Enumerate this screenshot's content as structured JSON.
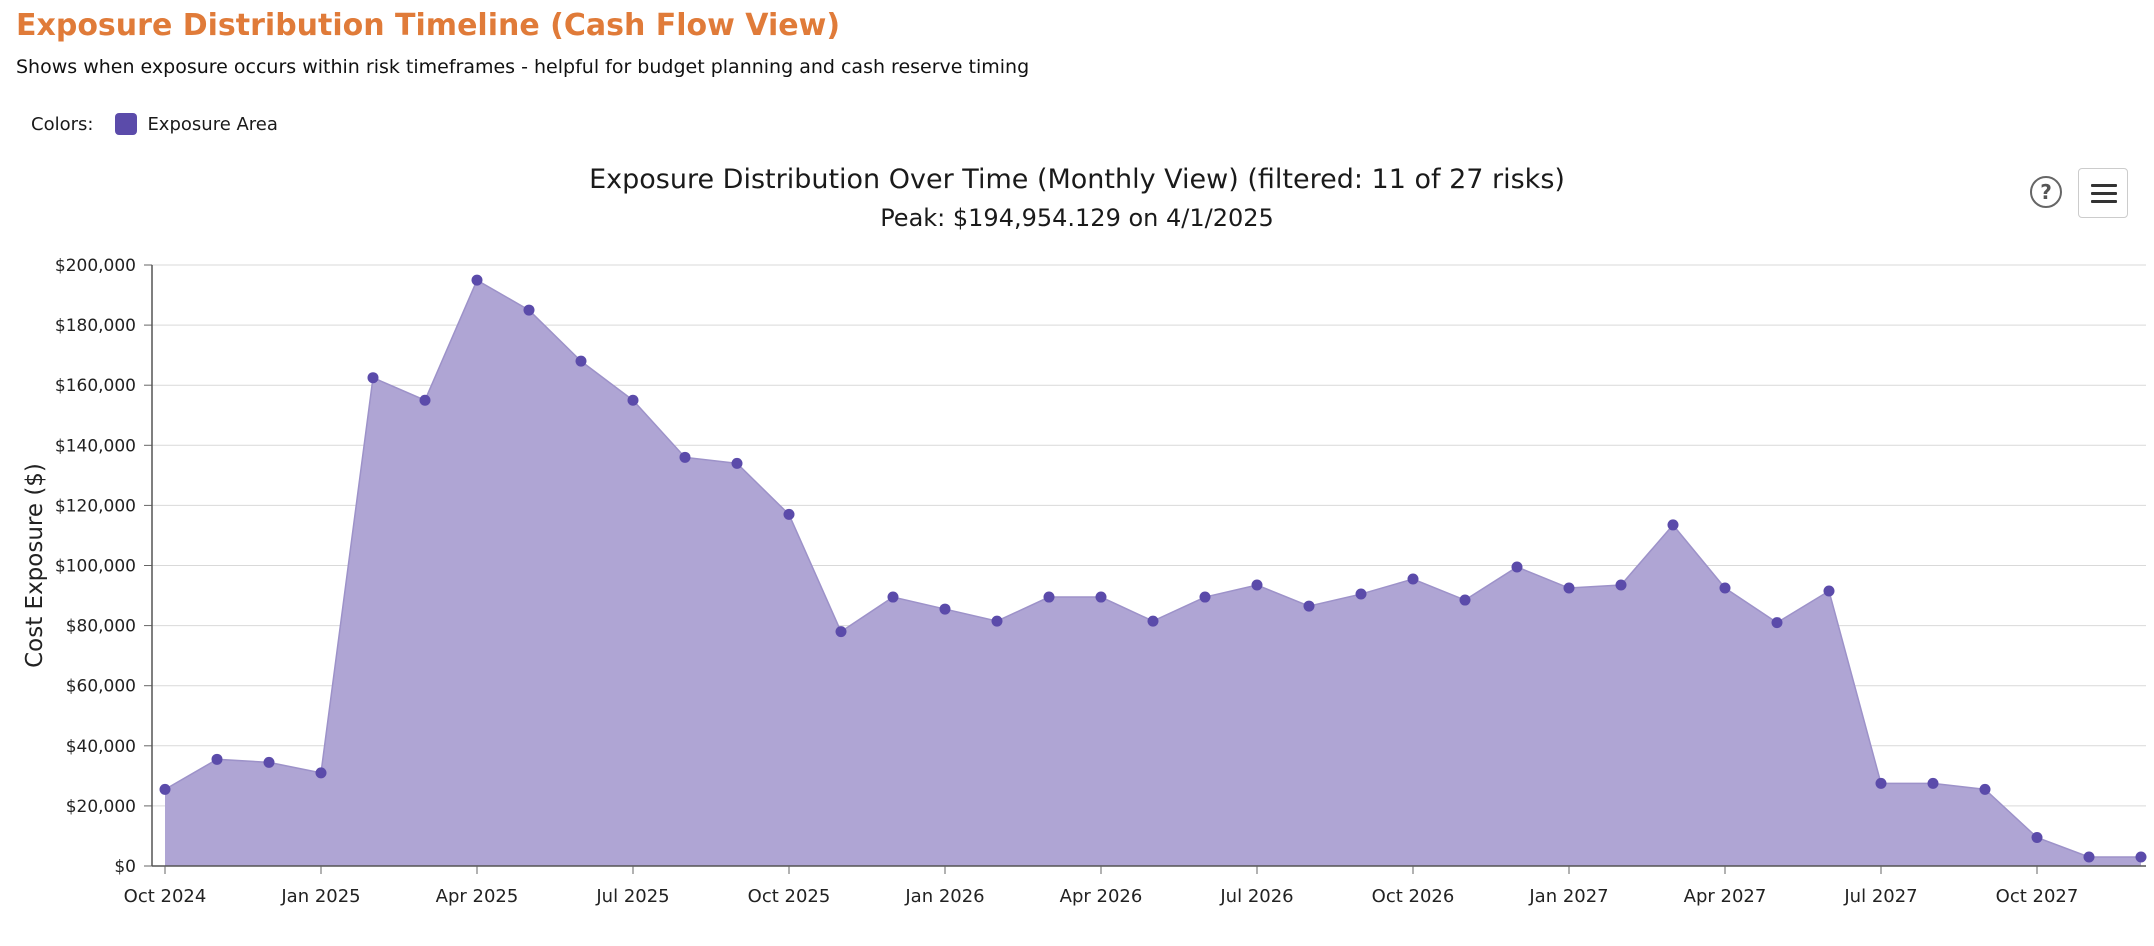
{
  "page": {
    "title": "Exposure Distribution Timeline (Cash Flow View)",
    "subtitle": "Shows when exposure occurs within risk timeframes - helpful for budget planning and cash reserve timing",
    "legend_prefix": "Colors:",
    "legend_item": "Exposure Area",
    "legend_color": "#5B4BAA"
  },
  "toolbar": {
    "help_label": "?",
    "help_icon": "help-icon",
    "menu_icon": "hamburger-menu-icon"
  },
  "chart_data": {
    "type": "area",
    "title": "Exposure Distribution Over Time (Monthly View) (filtered: 11 of 27 risks)",
    "subtitle": "Peak: $194,954.129 on 4/1/2025",
    "xlabel": "",
    "ylabel": "Cost Exposure ($)",
    "ylim": [
      0,
      200000
    ],
    "yticks": [
      0,
      20000,
      40000,
      60000,
      80000,
      100000,
      120000,
      140000,
      160000,
      180000,
      200000
    ],
    "ytick_labels": [
      "$0",
      "$20,000",
      "$40,000",
      "$60,000",
      "$80,000",
      "$100,000",
      "$120,000",
      "$140,000",
      "$160,000",
      "$180,000",
      "$200,000"
    ],
    "xtick_labels": [
      "Oct 2024",
      "Jan 2025",
      "Apr 2025",
      "Jul 2025",
      "Oct 2025",
      "Jan 2026",
      "Apr 2026",
      "Jul 2026",
      "Oct 2026",
      "Jan 2027",
      "Apr 2027",
      "Jul 2027",
      "Oct 2027"
    ],
    "x": [
      "2024-10-01",
      "2024-11-01",
      "2024-12-01",
      "2025-01-01",
      "2025-02-01",
      "2025-03-01",
      "2025-04-01",
      "2025-05-01",
      "2025-06-01",
      "2025-07-01",
      "2025-08-01",
      "2025-09-01",
      "2025-10-01",
      "2025-11-01",
      "2025-12-01",
      "2026-01-01",
      "2026-02-01",
      "2026-03-01",
      "2026-04-01",
      "2026-05-01",
      "2026-06-01",
      "2026-07-01",
      "2026-08-01",
      "2026-09-01",
      "2026-10-01",
      "2026-11-01",
      "2026-12-01",
      "2027-01-01",
      "2027-02-01",
      "2027-03-01",
      "2027-04-01",
      "2027-05-01",
      "2027-06-01",
      "2027-07-01",
      "2027-08-01",
      "2027-09-01",
      "2027-10-01",
      "2027-11-01",
      "2027-12-01"
    ],
    "series": [
      {
        "name": "Exposure Area",
        "values": [
          25500,
          35500,
          34500,
          31000,
          162500,
          155000,
          194954,
          185000,
          168000,
          155000,
          136000,
          134000,
          117000,
          78000,
          89500,
          85500,
          81500,
          89500,
          89500,
          81500,
          89500,
          93500,
          86500,
          90500,
          95500,
          88500,
          99500,
          92500,
          93500,
          113500,
          92500,
          81000,
          91500,
          27500,
          27500,
          25500,
          9500,
          3000,
          3000
        ]
      }
    ],
    "grid": true,
    "fill_color": "#AFA5D4",
    "point_color": "#5B4BAA",
    "legend": "top-left"
  }
}
